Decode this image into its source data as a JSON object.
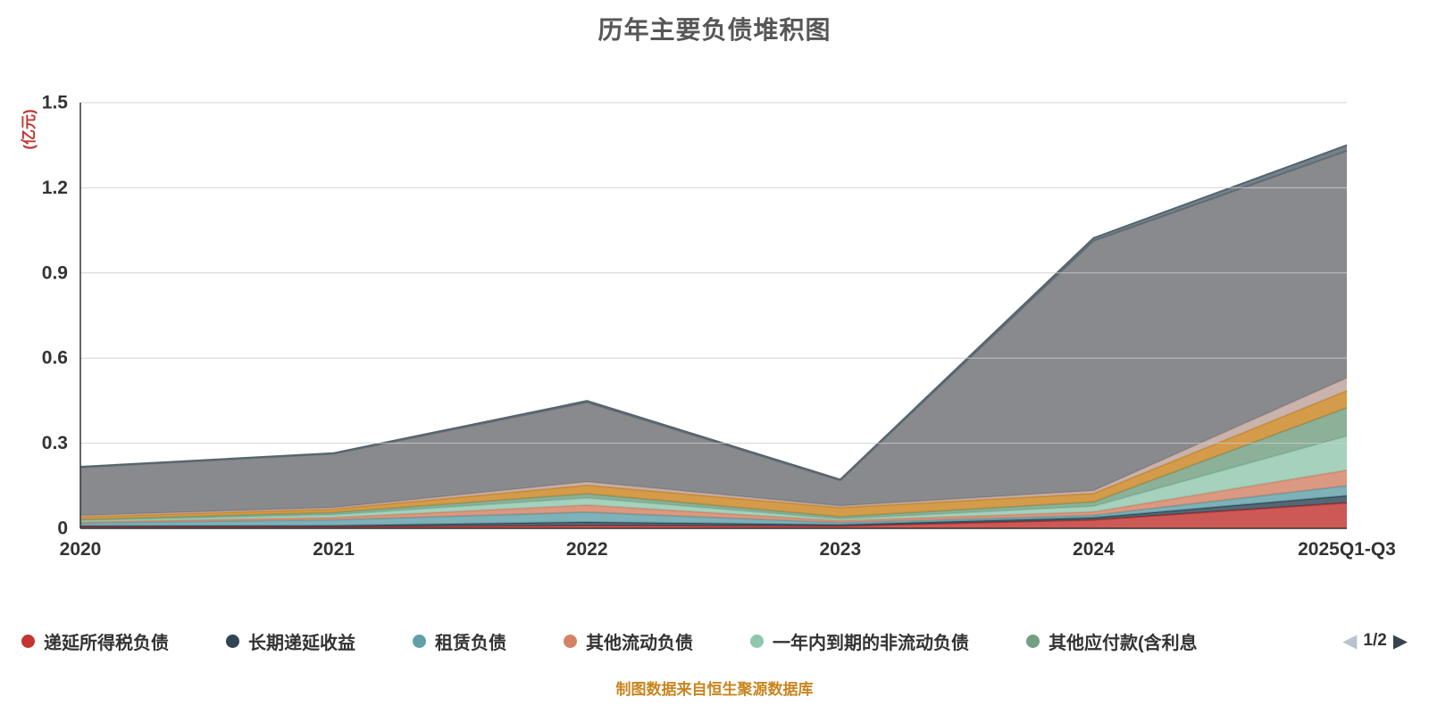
{
  "title": "历年主要负债堆积图",
  "footer": "制图数据来自恒生聚源数据库",
  "legend": {
    "pager": {
      "current": "1/2",
      "prev_icon": "◀",
      "next_icon": "▶"
    },
    "items": [
      {
        "label": "递延所得税负债",
        "color": "#c23531"
      },
      {
        "label": "长期递延收益",
        "color": "#2f4554"
      },
      {
        "label": "租赁负债",
        "color": "#61a0a8"
      },
      {
        "label": "其他流动负债",
        "color": "#d48265"
      },
      {
        "label": "一年内到期的非流动负债",
        "color": "#91c7ae"
      },
      {
        "label": "其他应付款(含利息",
        "color": "#749f83"
      }
    ]
  },
  "chart_data": {
    "type": "area",
    "stacked": true,
    "title": "历年主要负债堆积图",
    "y_unit": "(亿元)",
    "unit_color": "#c23531",
    "categories": [
      "2020",
      "2021",
      "2022",
      "2023",
      "2024",
      "2025Q1-Q3"
    ],
    "ylim": [
      0,
      1.5
    ],
    "yticks": [
      0,
      0.3,
      0.6,
      0.9,
      1.2,
      1.5
    ],
    "grid": true,
    "legend_position": "bottom",
    "series": [
      {
        "name": "递延所得税负债",
        "color": "#c23531",
        "values": [
          0.005,
          0.005,
          0.01,
          0.008,
          0.03,
          0.09
        ]
      },
      {
        "name": "长期递延收益",
        "color": "#2f4554",
        "values": [
          0.004,
          0.005,
          0.012,
          0.005,
          0.008,
          0.025
        ]
      },
      {
        "name": "租赁负债",
        "color": "#61a0a8",
        "values": [
          0.01,
          0.02,
          0.035,
          0.007,
          0.008,
          0.035
        ]
      },
      {
        "name": "其他流动负债",
        "color": "#d48265",
        "values": [
          0.004,
          0.008,
          0.025,
          0.007,
          0.012,
          0.055
        ]
      },
      {
        "name": "一年内到期的非流动负债",
        "color": "#91c7ae",
        "values": [
          0.004,
          0.01,
          0.025,
          0.006,
          0.02,
          0.12
        ]
      },
      {
        "name": "其他应付款(含利息",
        "color": "#749f83",
        "values": [
          0.004,
          0.008,
          0.015,
          0.008,
          0.015,
          0.1
        ]
      },
      {
        "name": "",
        "color": "#ca8622",
        "values": [
          0.01,
          0.012,
          0.03,
          0.032,
          0.03,
          0.06
        ]
      },
      {
        "name": "",
        "color": "#bda29a",
        "values": [
          0.004,
          0.005,
          0.012,
          0.006,
          0.01,
          0.045
        ]
      },
      {
        "name": "",
        "color": "#6e7074",
        "values": [
          0.17,
          0.19,
          0.28,
          0.09,
          0.88,
          0.8
        ]
      },
      {
        "name": "",
        "color": "#546570",
        "values": [
          0.002,
          0.002,
          0.005,
          0.003,
          0.01,
          0.02
        ]
      }
    ]
  }
}
